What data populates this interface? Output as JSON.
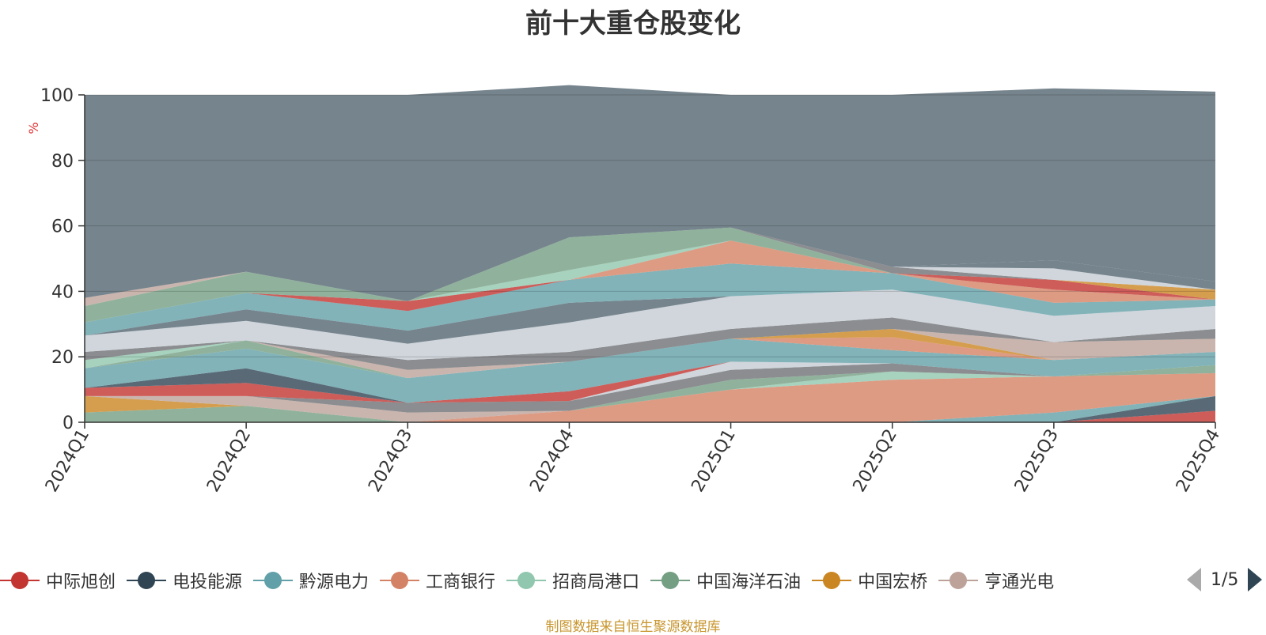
{
  "chart_data": {
    "type": "area",
    "stacked": true,
    "title": "前十大重仓股变化",
    "ylabel": "%",
    "ylim": [
      0,
      100
    ],
    "yticks": [
      0,
      20,
      40,
      60,
      80,
      100
    ],
    "grid": true,
    "categories": [
      "2024Q1",
      "2024Q2",
      "2024Q3",
      "2024Q4",
      "2025Q1",
      "2025Q2",
      "2025Q3",
      "2025Q4"
    ],
    "series": [
      {
        "name": "中际旭创",
        "color": "#c23531",
        "values": [
          0,
          0,
          0,
          0,
          0,
          0,
          0,
          3.5
        ]
      },
      {
        "name": "电投能源",
        "color": "#2f4554",
        "values": [
          0,
          0,
          0,
          0,
          0,
          0,
          0,
          4.5
        ]
      },
      {
        "name": "黔源电力",
        "color": "#61a0a8",
        "values": [
          0,
          0,
          0,
          0,
          0,
          0,
          3,
          0
        ]
      },
      {
        "name": "工商银行",
        "color": "#d48265",
        "values": [
          0,
          0,
          0,
          3.5,
          10,
          13,
          11,
          7
        ]
      },
      {
        "name": "招商局港口",
        "color": "#91c7ae",
        "values": [
          0,
          0,
          0,
          0,
          0,
          2.5,
          0,
          0
        ]
      },
      {
        "name": "中国海洋石油",
        "color": "#749f83",
        "values": [
          3,
          5,
          0,
          0,
          3,
          0,
          0,
          2.5
        ]
      },
      {
        "name": "中国宏桥",
        "color": "#ca8622",
        "values": [
          5,
          0,
          0,
          0,
          0,
          0,
          0,
          0
        ]
      },
      {
        "name": "亨通光电",
        "color": "#bda29a",
        "values": [
          0,
          3,
          3,
          0,
          0,
          0,
          0,
          0
        ]
      },
      {
        "name": "",
        "color": "#6e7074",
        "values": [
          0,
          0,
          3,
          3,
          3,
          2.5,
          0,
          0
        ]
      },
      {
        "name": "",
        "color": "#546570",
        "values": [
          0,
          0,
          0,
          0,
          0,
          0,
          0,
          0
        ]
      },
      {
        "name": "",
        "color": "#c4ccd3",
        "values": [
          0,
          0,
          0,
          0,
          2.5,
          0,
          0,
          0
        ]
      },
      {
        "name": "",
        "color": "#c23531",
        "values": [
          2.5,
          4,
          0,
          3,
          0,
          0,
          0,
          0
        ]
      },
      {
        "name": "",
        "color": "#2f4554",
        "values": [
          0,
          4.5,
          0,
          0,
          0,
          0,
          0,
          0
        ]
      },
      {
        "name": "",
        "color": "#61a0a8",
        "values": [
          6,
          6,
          7.5,
          9,
          7,
          4,
          5,
          4
        ]
      },
      {
        "name": "",
        "color": "#d48265",
        "values": [
          0,
          0,
          0,
          0,
          0,
          4,
          0,
          0
        ]
      },
      {
        "name": "",
        "color": "#ca8622",
        "values": [
          0,
          0,
          0,
          0,
          0,
          2.5,
          0,
          0
        ]
      },
      {
        "name": "",
        "color": "#749f83",
        "values": [
          0,
          2.5,
          0,
          0,
          0,
          0,
          0,
          0
        ]
      },
      {
        "name": "",
        "color": "#91c7ae",
        "values": [
          2.5,
          0,
          0,
          0,
          0,
          0,
          0,
          0
        ]
      },
      {
        "name": "",
        "color": "#bda29a",
        "values": [
          0,
          0,
          2.5,
          0,
          0,
          0,
          5.5,
          4
        ]
      },
      {
        "name": "",
        "color": "#6e7074",
        "values": [
          2.5,
          0,
          3,
          3,
          3,
          3.5,
          0,
          3
        ]
      },
      {
        "name": "",
        "color": "#c4ccd3",
        "values": [
          5,
          6,
          5,
          9,
          10,
          8.5,
          8,
          7
        ]
      },
      {
        "name": "",
        "color": "#546570",
        "values": [
          0,
          3.5,
          4,
          6,
          0,
          0,
          0,
          0
        ]
      },
      {
        "name": "",
        "color": "#61a0a8",
        "values": [
          4,
          5,
          6,
          7,
          10,
          5,
          4,
          2
        ]
      },
      {
        "name": "",
        "color": "#d48265",
        "values": [
          0,
          0,
          0,
          0,
          7,
          0,
          4,
          0
        ]
      },
      {
        "name": "",
        "color": "#c23531",
        "values": [
          0,
          0,
          3,
          0,
          0,
          0,
          3,
          0
        ]
      },
      {
        "name": "",
        "color": "#ca8622",
        "values": [
          0,
          0,
          0,
          0,
          0,
          0,
          0,
          3
        ]
      },
      {
        "name": "",
        "color": "#91c7ae",
        "values": [
          0,
          0,
          0,
          3,
          0,
          0,
          0,
          0
        ]
      },
      {
        "name": "",
        "color": "#749f83",
        "values": [
          5,
          6.5,
          0,
          10,
          4,
          0,
          0,
          0
        ]
      },
      {
        "name": "",
        "color": "#6e7074",
        "values": [
          0,
          0,
          0,
          0,
          0,
          2,
          0,
          0
        ]
      },
      {
        "name": "",
        "color": "#c4ccd3",
        "values": [
          0,
          0,
          0,
          0,
          0,
          0,
          3.5,
          0
        ]
      },
      {
        "name": "",
        "color": "#546570",
        "values": [
          0,
          0,
          0,
          0,
          0,
          0,
          2.5,
          2.5
        ]
      },
      {
        "name": "",
        "color": "#bda29a",
        "values": [
          2.5,
          0,
          0,
          0,
          0,
          0,
          0,
          0
        ]
      },
      {
        "name": "",
        "color": "#546570",
        "values": [
          62,
          54,
          63,
          46.5,
          40.5,
          52.5,
          52.5,
          58
        ]
      }
    ]
  },
  "legend": {
    "items": [
      {
        "name": "中际旭创",
        "color": "#c23531"
      },
      {
        "name": "电投能源",
        "color": "#2f4554"
      },
      {
        "name": "黔源电力",
        "color": "#61a0a8"
      },
      {
        "name": "工商银行",
        "color": "#d48265"
      },
      {
        "name": "招商局港口",
        "color": "#91c7ae"
      },
      {
        "name": "中国海洋石油",
        "color": "#749f83"
      },
      {
        "name": "中国宏桥",
        "color": "#ca8622"
      },
      {
        "name": "亨通光电",
        "color": "#bda29a"
      }
    ],
    "page": "1/5"
  },
  "source": "制图数据来自恒生聚源数据库"
}
